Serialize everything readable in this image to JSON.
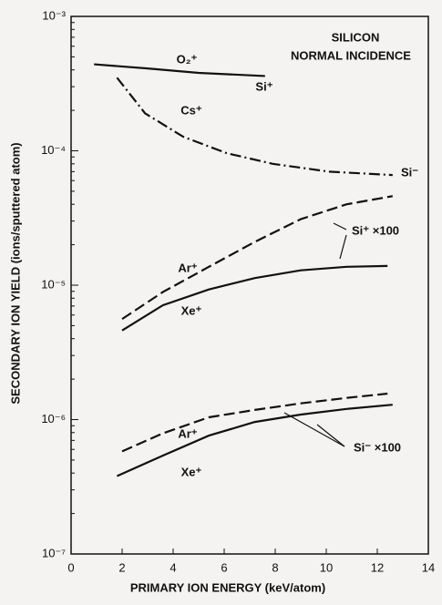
{
  "chart_data": {
    "type": "line",
    "x_label": "PRIMARY ION ENERGY (keV/atom)",
    "y_label": "SECONDARY ION YIELD (ions/sputtered atom)",
    "title_lines": [
      "SILICON",
      "NORMAL INCIDENCE"
    ],
    "log_y": true,
    "xlim": [
      0,
      14
    ],
    "xticks": [
      0,
      2,
      4,
      6,
      8,
      10,
      12,
      14
    ],
    "ylim": [
      1e-07,
      0.001
    ],
    "yticks": [
      {
        "value": 1e-07,
        "label": "10⁻⁷"
      },
      {
        "value": 1e-06,
        "label": "10⁻⁶"
      },
      {
        "value": 1e-05,
        "label": "10⁻⁵"
      },
      {
        "value": 0.0001,
        "label": "10⁻⁴"
      },
      {
        "value": 0.001,
        "label": "10⁻³"
      }
    ],
    "series": [
      {
        "name": "O₂⁺",
        "color": "#111111",
        "style": "solid",
        "x": [
          0.9,
          3,
          5,
          7.6
        ],
        "values": [
          0.00044,
          0.00041,
          0.00038,
          0.00036
        ]
      },
      {
        "name": "Cs⁺",
        "color": "#111111",
        "style": "dashdot",
        "x": [
          1.8,
          2.9,
          4.4,
          6.1,
          7.9,
          10.1,
          12.6
        ],
        "values": [
          0.00035,
          0.00019,
          0.000127,
          9.6e-05,
          8e-05,
          7e-05,
          6.6e-05
        ]
      },
      {
        "name": "Ar⁺",
        "color": "#111111",
        "style": "dashed",
        "x": [
          2,
          3.6,
          5.4,
          7.2,
          9,
          10.8,
          12.6
        ],
        "values": [
          5.6e-06,
          8.9e-06,
          1.37e-05,
          2.1e-05,
          3.1e-05,
          4e-05,
          4.6e-05
        ]
      },
      {
        "name": "Xe⁺",
        "color": "#111111",
        "style": "solid",
        "x": [
          2,
          3.6,
          5.4,
          7.2,
          9,
          10.8,
          12.4
        ],
        "values": [
          4.6e-06,
          7.1e-06,
          9.3e-06,
          1.13e-05,
          1.29e-05,
          1.37e-05,
          1.39e-05
        ]
      },
      {
        "name": "Ar⁺",
        "color": "#111111",
        "style": "dashed",
        "x": [
          2,
          3.6,
          5.4,
          7.2,
          9,
          10.8,
          12.4
        ],
        "values": [
          5.8e-07,
          7.9e-07,
          1.04e-06,
          1.18e-06,
          1.32e-06,
          1.45e-06,
          1.56e-06
        ]
      },
      {
        "name": "Xe⁺",
        "color": "#111111",
        "style": "solid",
        "x": [
          1.8,
          3.6,
          5.4,
          7.2,
          9,
          10.8,
          12.6
        ],
        "values": [
          3.8e-07,
          5.4e-07,
          7.6e-07,
          9.6e-07,
          1.09e-06,
          1.2e-06,
          1.29e-06
        ]
      }
    ],
    "annotations": [
      "Si⁺",
      "Si⁻",
      "Si⁺ ×100",
      "Si⁻ ×100"
    ]
  }
}
